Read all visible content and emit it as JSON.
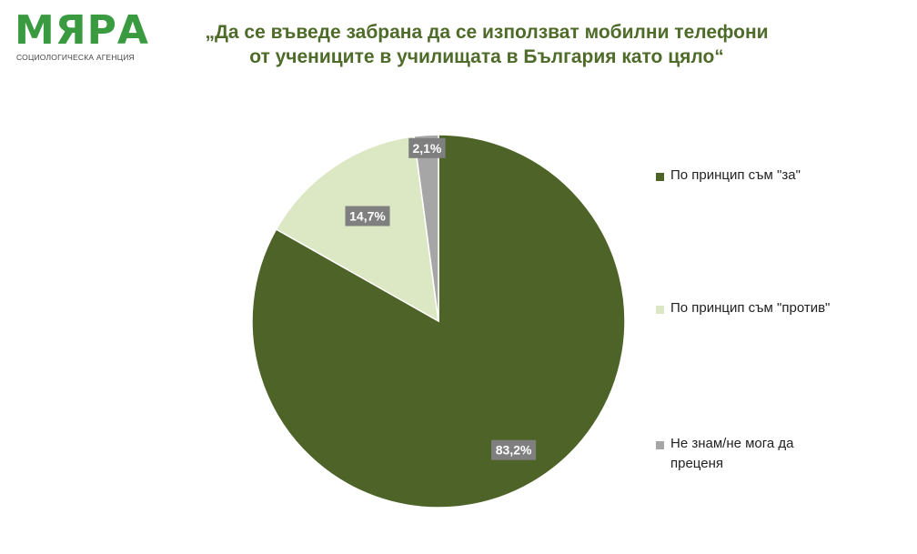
{
  "logo": {
    "word": "МЯРА",
    "subtitle": "СОЦИОЛОГИЧЕСКА АГЕНЦИЯ",
    "color": "#3a9a3f"
  },
  "title": {
    "line1": "„Да се въведе забрана да се използват мобилни телефони",
    "line2": "от учениците в училищата в България като цяло“",
    "color": "#4f6b2a"
  },
  "chart_data": {
    "type": "pie",
    "title": "„Да се въведе забрана да се използват мобилни телефони от учениците в училищата в България като цяло“",
    "legend_position": "right",
    "start_angle_deg": 0,
    "direction": "clockwise",
    "slices": [
      {
        "label": "По принцип съм \"за\"",
        "value": 83.2,
        "display": "83,2%",
        "color": "#4d6327"
      },
      {
        "label": "По принцип съм \"против\"",
        "value": 14.7,
        "display": "14,7%",
        "color": "#dce8c4"
      },
      {
        "label": "Не знам/не мога да преценя",
        "value": 2.1,
        "display": "2,1%",
        "color": "#a6a6a6"
      }
    ]
  },
  "label_box_color": "#7f7f7f"
}
